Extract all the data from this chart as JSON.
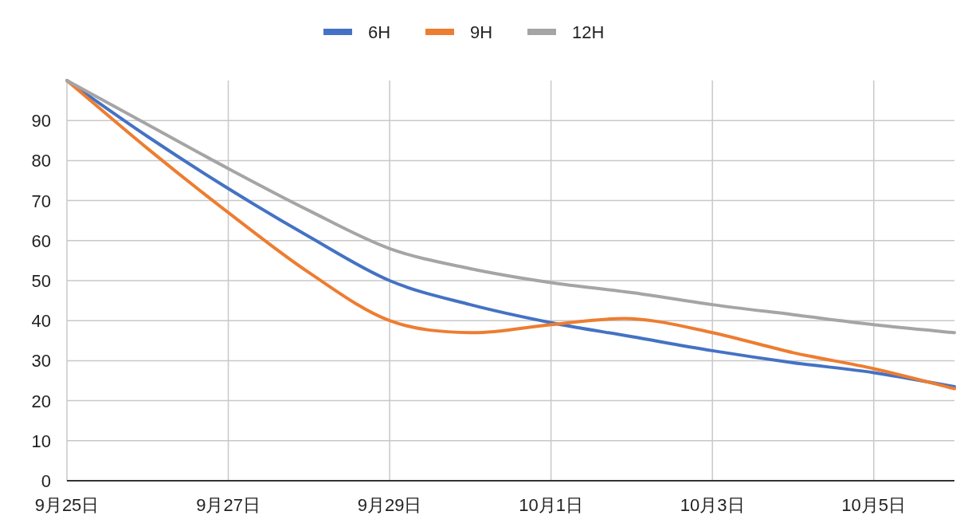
{
  "chart_data": {
    "type": "line",
    "x": [
      "--09-25",
      "--09-26",
      "--09-27",
      "--09-28",
      "--09-29",
      "--09-30",
      "--10-01",
      "--10-02",
      "--10-03",
      "--10-04",
      "--10-05",
      "--10-06"
    ],
    "series": [
      {
        "name": "6H",
        "color": "#4472c4",
        "values": [
          100,
          86,
          73,
          61,
          50,
          44,
          39.5,
          36,
          32.5,
          29.5,
          27,
          23.5
        ]
      },
      {
        "name": "9H",
        "color": "#ed7d31",
        "values": [
          100,
          83,
          67,
          52,
          40,
          37,
          39,
          40.5,
          37,
          32,
          28,
          23
        ]
      },
      {
        "name": "12H",
        "color": "#a5a5a5",
        "values": [
          100,
          89,
          78,
          67.5,
          58,
          53,
          49.5,
          47,
          44,
          41.5,
          39,
          37
        ]
      }
    ],
    "xlim": [
      "--09-25",
      "--10-06"
    ],
    "xticks": [
      {
        "value": "--09-25",
        "label": "9月25日"
      },
      {
        "value": "--09-27",
        "label": "9月27日"
      },
      {
        "value": "--09-29",
        "label": "9月29日"
      },
      {
        "value": "--10-01",
        "label": "10月1日"
      },
      {
        "value": "--10-03",
        "label": "10月3日"
      },
      {
        "value": "--10-05",
        "label": "10月5日"
      }
    ],
    "ylim": [
      0,
      100
    ],
    "yticks": [
      0,
      10,
      20,
      30,
      40,
      50,
      60,
      70,
      80,
      90
    ],
    "grid": true,
    "legend": "top",
    "marker": "none",
    "line_style": "solid"
  }
}
